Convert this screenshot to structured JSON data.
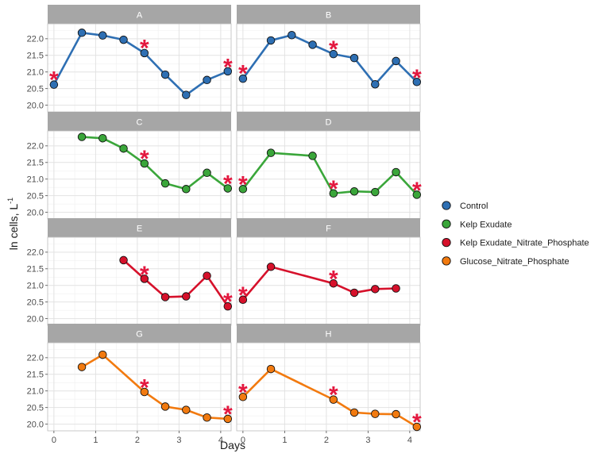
{
  "chart_data": {
    "type": "line",
    "layout": "faceted 2 columns x 4 rows, shared axes",
    "xlabel": "Days",
    "ylabel_main": "ln cells, L",
    "ylabel_sup": "-1",
    "xlim": [
      -0.15,
      4.25
    ],
    "ylim": [
      19.8,
      22.45
    ],
    "xticks": [
      0,
      1,
      2,
      3,
      4
    ],
    "yticks": [
      20.0,
      20.5,
      21.0,
      21.5,
      22.0
    ],
    "grid": true,
    "legend_position": "right",
    "series_colors": {
      "Control": "#2e6fb3",
      "Kelp Exudate": "#3aa63a",
      "Kelp Exudate_Nitrate_Phosphate": "#d6112b",
      "Glucose_Nitrate_Phosphate": "#f27a0f"
    },
    "marker": "circle with black outline",
    "annotation_symbol": "*",
    "annotation_color": "#e3173e",
    "panels": [
      {
        "label": "A",
        "series": "Control",
        "x": [
          0,
          0.67,
          1.17,
          1.67,
          2.17,
          2.67,
          3.17,
          3.67,
          4.17
        ],
        "y": [
          20.62,
          22.18,
          22.1,
          21.97,
          21.57,
          20.92,
          20.31,
          20.76,
          21.02
        ],
        "stars": [
          [
            0,
            20.82
          ],
          [
            2.17,
            21.77
          ],
          [
            4.17,
            21.2
          ]
        ]
      },
      {
        "label": "B",
        "series": "Control",
        "x": [
          0,
          0.67,
          1.17,
          1.67,
          2.17,
          2.67,
          3.17,
          3.67,
          4.17
        ],
        "y": [
          20.8,
          21.95,
          22.11,
          21.82,
          21.54,
          21.42,
          20.63,
          21.33,
          20.7
        ],
        "stars": [
          [
            0,
            21.0
          ],
          [
            2.17,
            21.73
          ],
          [
            4.17,
            20.88
          ]
        ]
      },
      {
        "label": "C",
        "series": "Kelp Exudate",
        "x": [
          0.67,
          1.17,
          1.67,
          2.17,
          2.67,
          3.17,
          3.67,
          4.17
        ],
        "y": [
          22.27,
          22.23,
          21.92,
          21.47,
          20.87,
          20.7,
          21.19,
          20.72
        ],
        "stars": [
          [
            2.17,
            21.66
          ],
          [
            4.17,
            20.91
          ]
        ]
      },
      {
        "label": "D",
        "series": "Kelp Exudate",
        "x": [
          0,
          0.67,
          1.67,
          2.17,
          2.67,
          3.17,
          3.67,
          4.17
        ],
        "y": [
          20.7,
          21.79,
          21.7,
          20.57,
          20.63,
          20.61,
          21.21,
          20.53
        ],
        "stars": [
          [
            0,
            20.89
          ],
          [
            2.17,
            20.75
          ],
          [
            4.17,
            20.71
          ]
        ]
      },
      {
        "label": "E",
        "series": "Kelp Exudate_Nitrate_Phosphate",
        "x": [
          1.67,
          2.17,
          2.67,
          3.17,
          3.67,
          4.17
        ],
        "y": [
          21.76,
          21.2,
          20.65,
          20.67,
          21.29,
          20.37
        ],
        "stars": [
          [
            2.17,
            21.38
          ],
          [
            4.17,
            20.56
          ]
        ]
      },
      {
        "label": "F",
        "series": "Kelp Exudate_Nitrate_Phosphate",
        "x": [
          0,
          0.67,
          2.17,
          2.67,
          3.17,
          3.67
        ],
        "y": [
          20.57,
          21.56,
          21.06,
          20.78,
          20.89,
          20.91
        ],
        "stars": [
          [
            0,
            20.76
          ],
          [
            2.17,
            21.25
          ]
        ]
      },
      {
        "label": "G",
        "series": "Glucose_Nitrate_Phosphate",
        "x": [
          0.67,
          1.17,
          2.17,
          2.67,
          3.17,
          3.67,
          4.17
        ],
        "y": [
          21.72,
          22.09,
          20.97,
          20.53,
          20.43,
          20.2,
          20.16
        ],
        "stars": [
          [
            2.17,
            21.15
          ],
          [
            4.17,
            20.35
          ]
        ]
      },
      {
        "label": "H",
        "series": "Glucose_Nitrate_Phosphate",
        "x": [
          0,
          0.67,
          2.17,
          2.67,
          3.17,
          3.67,
          4.17
        ],
        "y": [
          20.82,
          21.66,
          20.74,
          20.35,
          20.31,
          20.3,
          19.92
        ],
        "stars": [
          [
            0,
            21.01
          ],
          [
            2.17,
            20.93
          ],
          [
            4.17,
            20.11
          ]
        ]
      }
    ],
    "legend": [
      {
        "name": "Control",
        "color": "#2e6fb3"
      },
      {
        "name": "Kelp Exudate",
        "color": "#3aa63a"
      },
      {
        "name": "Kelp Exudate_Nitrate_Phosphate",
        "color": "#d6112b"
      },
      {
        "name": "Glucose_Nitrate_Phosphate",
        "color": "#f27a0f"
      }
    ]
  }
}
